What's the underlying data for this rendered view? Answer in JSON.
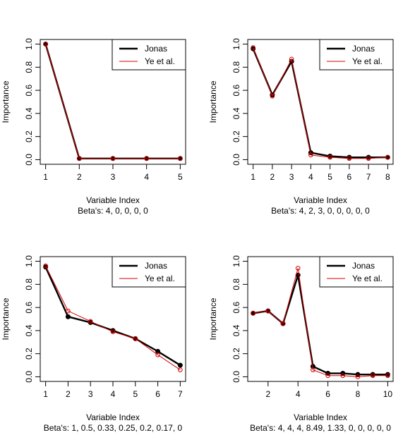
{
  "legend": {
    "series": [
      "Jonas",
      "Ye et al."
    ],
    "colors": [
      "#000000",
      "#d40000"
    ],
    "placement": "top-right"
  },
  "ylabel": "Importance",
  "xlabel": "Variable Index",
  "chart_data": [
    {
      "type": "line",
      "x": [
        1,
        2,
        3,
        4,
        5
      ],
      "xticks": [
        "1",
        "2",
        "3",
        "4",
        "5"
      ],
      "yticks": [
        "0.0",
        "0.2",
        "0.4",
        "0.6",
        "0.8",
        "1.0"
      ],
      "ylim": [
        0,
        1
      ],
      "caption": "Beta's:  4, 0, 0, 0, 0",
      "series": [
        {
          "name": "Jonas",
          "values": [
            1.0,
            0.01,
            0.01,
            0.01,
            0.01
          ]
        },
        {
          "name": "Ye et al.",
          "values": [
            1.0,
            0.01,
            0.01,
            0.01,
            0.01
          ]
        }
      ]
    },
    {
      "type": "line",
      "x": [
        1,
        2,
        3,
        4,
        5,
        6,
        7,
        8
      ],
      "xticks": [
        "1",
        "2",
        "3",
        "4",
        "5",
        "6",
        "7",
        "8"
      ],
      "yticks": [
        "0.0",
        "0.2",
        "0.4",
        "0.6",
        "0.8",
        "1.0"
      ],
      "ylim": [
        0,
        1
      ],
      "caption": "Beta's:  4, 2, 3, 0, 0, 0, 0, 0",
      "series": [
        {
          "name": "Jonas",
          "values": [
            0.96,
            0.56,
            0.85,
            0.06,
            0.03,
            0.02,
            0.02,
            0.02
          ]
        },
        {
          "name": "Ye et al.",
          "values": [
            0.97,
            0.55,
            0.87,
            0.04,
            0.02,
            0.01,
            0.01,
            0.02
          ]
        }
      ]
    },
    {
      "type": "line",
      "x": [
        1,
        2,
        3,
        4,
        5,
        6,
        7
      ],
      "xticks": [
        "1",
        "2",
        "3",
        "4",
        "5",
        "6",
        "7"
      ],
      "yticks": [
        "0.0",
        "0.2",
        "0.4",
        "0.6",
        "0.8",
        "1.0"
      ],
      "ylim": [
        0,
        1
      ],
      "caption": "Beta's:  1, 0.5, 0.33, 0.25, 0.2, 0.17, 0",
      "series": [
        {
          "name": "Jonas",
          "values": [
            0.95,
            0.52,
            0.47,
            0.4,
            0.33,
            0.22,
            0.1
          ]
        },
        {
          "name": "Ye et al.",
          "values": [
            0.96,
            0.57,
            0.48,
            0.39,
            0.33,
            0.19,
            0.06
          ]
        }
      ]
    },
    {
      "type": "line",
      "x": [
        1,
        2,
        3,
        4,
        5,
        6,
        7,
        8,
        9,
        10
      ],
      "xticks": [
        "2",
        "4",
        "6",
        "8",
        "10"
      ],
      "xtick_values": [
        2,
        4,
        6,
        8,
        10
      ],
      "yticks": [
        "0.0",
        "0.2",
        "0.4",
        "0.6",
        "0.8",
        "1.0"
      ],
      "ylim": [
        0,
        1
      ],
      "caption": "Beta's:  4, 4, 4, 8.49, 1.33, 0, 0, 0, 0, 0",
      "series": [
        {
          "name": "Jonas",
          "values": [
            0.55,
            0.57,
            0.46,
            0.88,
            0.09,
            0.03,
            0.03,
            0.02,
            0.02,
            0.02
          ]
        },
        {
          "name": "Ye et al.",
          "values": [
            0.55,
            0.57,
            0.46,
            0.94,
            0.06,
            0.01,
            0.01,
            0.0,
            0.01,
            0.01
          ]
        }
      ]
    }
  ]
}
